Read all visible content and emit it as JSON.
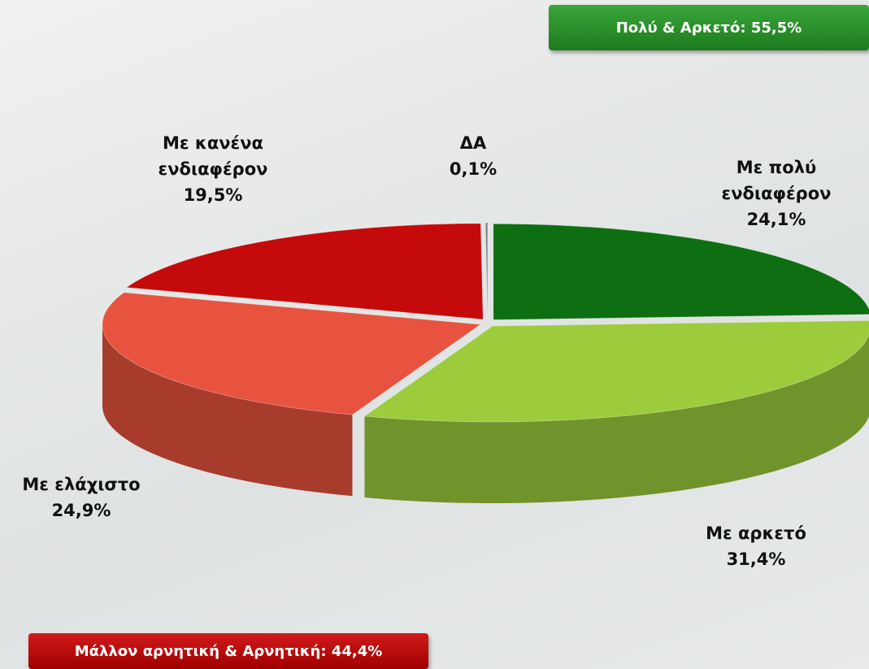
{
  "chart_data": {
    "type": "pie",
    "categories": [
      "Με πολύ ενδιαφέρον",
      "Με αρκετό",
      "Με ελάχιστο",
      "Με κανένα ενδιαφέρον",
      "ΔΑ"
    ],
    "values": [
      24.1,
      31.4,
      24.9,
      19.5,
      0.1
    ],
    "value_labels": [
      "24,1%",
      "31,4%",
      "24,9%",
      "19,5%",
      "0,1%"
    ],
    "colors": [
      "#0d6e12",
      "#9ccc3c",
      "#e8533f",
      "#c40a0a",
      "#8a8a8a"
    ],
    "annotations": [
      "Πολύ & Αρκετό: 55,5%",
      "Μάλλον αρνητική & Αρνητική: 44,4%"
    ]
  }
}
